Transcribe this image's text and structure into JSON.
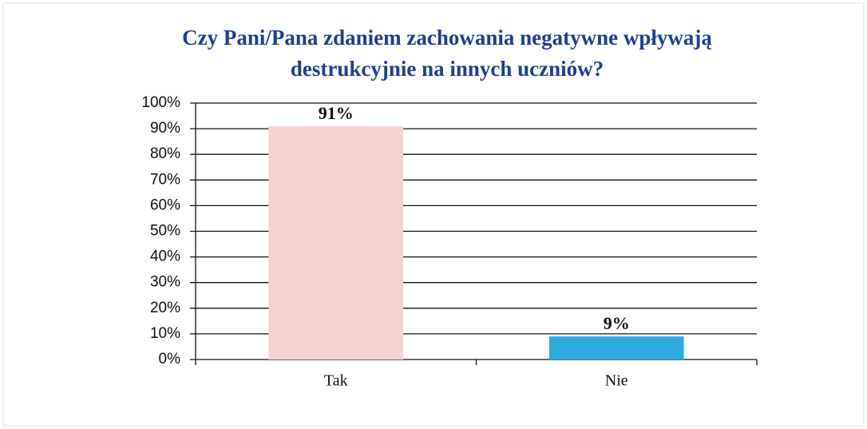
{
  "chart_data": {
    "type": "bar",
    "title": [
      "Czy Pani/Pana zdaniem zachowania negatywne wpływają",
      "destrukcyjnie na innych uczniów?"
    ],
    "categories": [
      "Tak",
      "Nie"
    ],
    "values": [
      91,
      9
    ],
    "value_labels": [
      "91%",
      "9%"
    ],
    "colors": [
      "#f4d3d3",
      "#2eaae1"
    ],
    "ylim": [
      0,
      100
    ],
    "yticks": [
      {
        "value": 0,
        "label": "0%"
      },
      {
        "value": 10,
        "label": "10%"
      },
      {
        "value": 20,
        "label": "20%"
      },
      {
        "value": 30,
        "label": "30%"
      },
      {
        "value": 40,
        "label": "40%"
      },
      {
        "value": 50,
        "label": "50%"
      },
      {
        "value": 60,
        "label": "60%"
      },
      {
        "value": 70,
        "label": "70%"
      },
      {
        "value": 80,
        "label": "80%"
      },
      {
        "value": 90,
        "label": "90%"
      },
      {
        "value": 100,
        "label": "100%"
      }
    ],
    "grid": true
  }
}
